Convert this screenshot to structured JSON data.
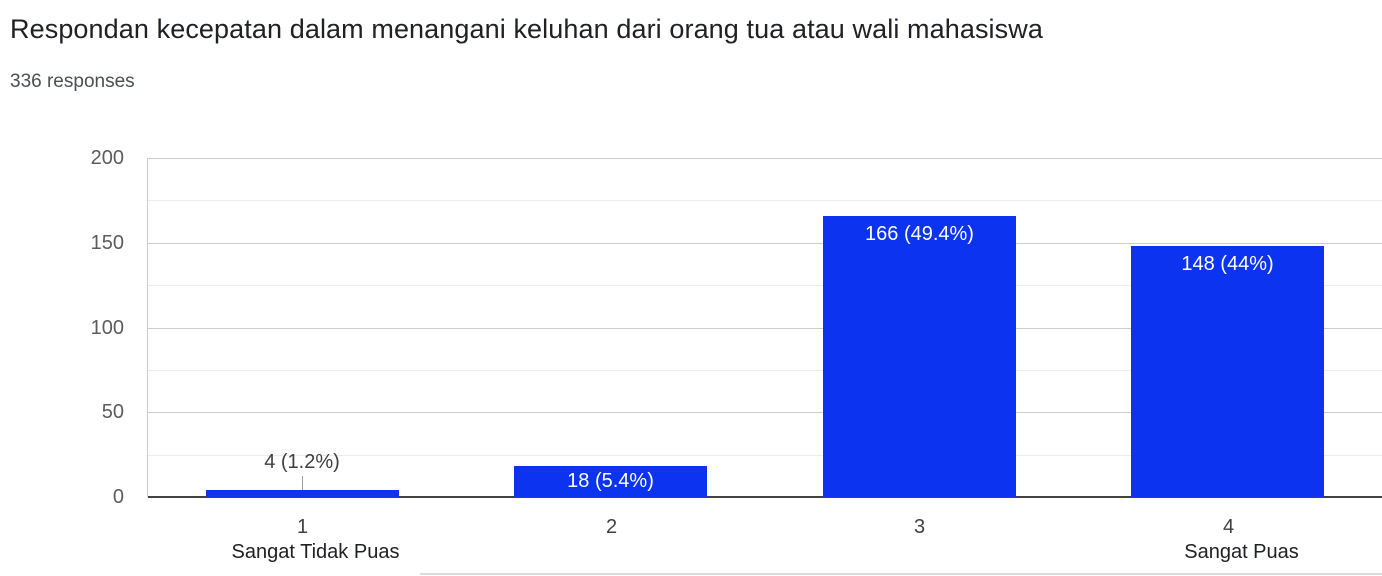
{
  "chart_data": {
    "type": "bar",
    "title": "Respondan kecepatan dalam menangani keluhan dari orang tua atau wali mahasiswa",
    "subtitle": "336 responses",
    "categories": [
      "1",
      "2",
      "3",
      "4"
    ],
    "category_sublabels": [
      "Sangat Tidak Puas",
      "",
      "",
      "Sangat Puas"
    ],
    "values": [
      4,
      18,
      166,
      148
    ],
    "value_labels": [
      "4 (1.2%)",
      "18 (5.4%)",
      "166 (49.4%)",
      "148 (44%)"
    ],
    "ylim": [
      0,
      200
    ],
    "yticks": [
      0,
      50,
      100,
      150,
      200
    ],
    "minor_yticks": [
      25,
      75,
      125,
      175
    ],
    "grid": true,
    "legend": "none",
    "bar_color": "#0b33f0",
    "xlabel": "",
    "ylabel": ""
  }
}
